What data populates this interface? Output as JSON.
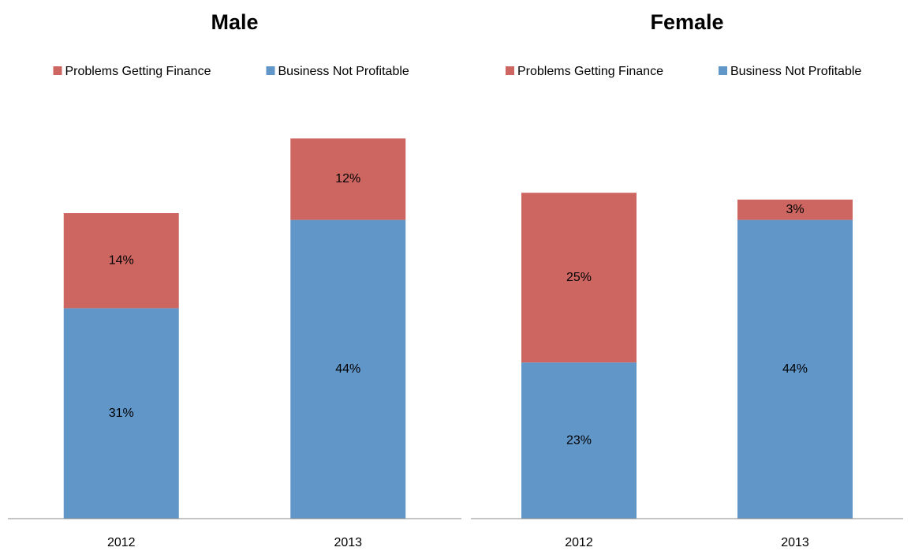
{
  "chart_data": [
    {
      "type": "bar",
      "stacked": true,
      "title": "Male",
      "categories": [
        "2012",
        "2013"
      ],
      "series": [
        {
          "name": "Problems Getting Finance",
          "color": "#cd6660",
          "values": [
            14,
            12
          ],
          "value_labels": [
            "14%",
            "12%"
          ]
        },
        {
          "name": "Business Not Profitable",
          "color": "#6196c9",
          "values": [
            31,
            44
          ],
          "value_labels": [
            "31%",
            "44%"
          ]
        }
      ],
      "ylim": [
        0,
        60
      ],
      "legend": "top"
    },
    {
      "type": "bar",
      "stacked": true,
      "title": "Female",
      "categories": [
        "2012",
        "2013"
      ],
      "series": [
        {
          "name": "Problems Getting Finance",
          "color": "#cd6660",
          "values": [
            25,
            3
          ],
          "value_labels": [
            "25%",
            "3%"
          ]
        },
        {
          "name": "Business Not Profitable",
          "color": "#6196c9",
          "values": [
            23,
            44
          ],
          "value_labels": [
            "23%",
            "44%"
          ]
        }
      ],
      "ylim": [
        0,
        60
      ],
      "legend": "top"
    }
  ]
}
